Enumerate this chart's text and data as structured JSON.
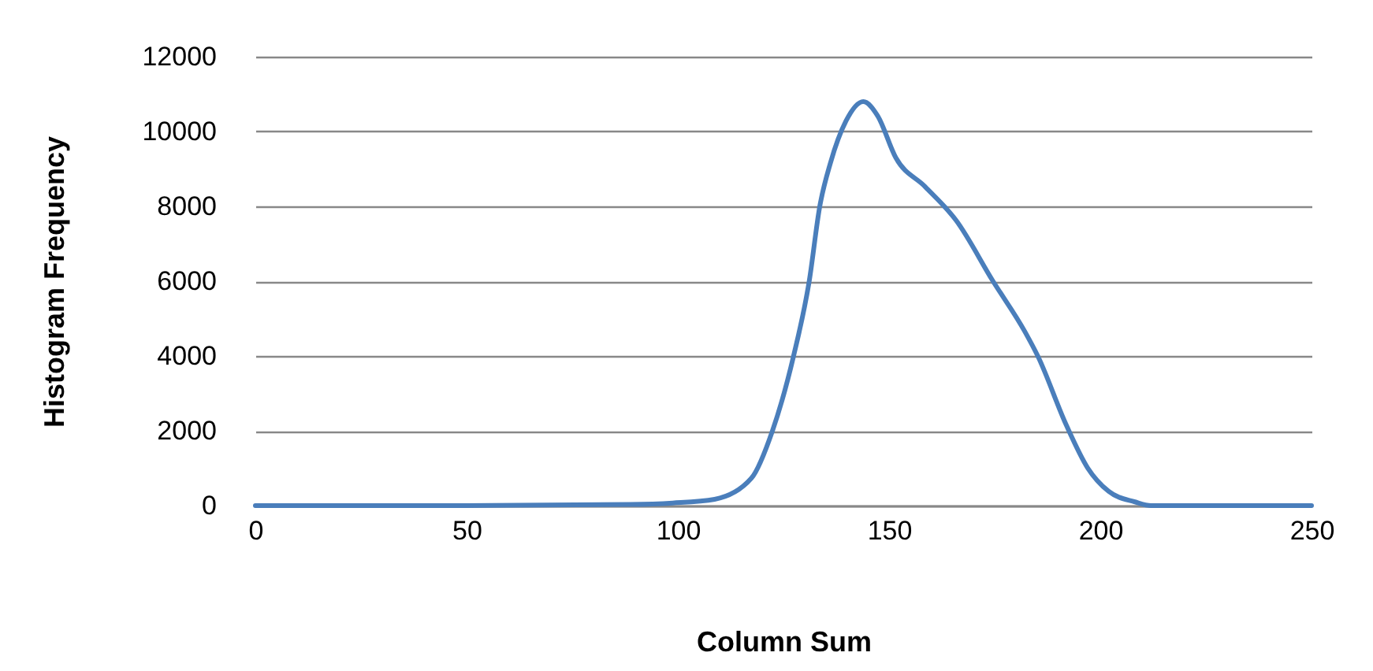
{
  "chart_data": {
    "type": "line",
    "xlabel": "Column Sum",
    "ylabel": "Histogram Frequency",
    "x": [
      0,
      50,
      88.8,
      98.8,
      108.7,
      117.4,
      122.4,
      127.4,
      131.1,
      133.6,
      136.1,
      139.8,
      143.9,
      147.3,
      151.6,
      158.5,
      165.9,
      174.6,
      182.1,
      185.2,
      192,
      197,
      202,
      208.2,
      212,
      230,
      250
    ],
    "values": [
      0,
      0,
      30,
      70,
      170,
      730,
      2000,
      4000,
      6000,
      8000,
      9150,
      10280,
      10800,
      10420,
      9300,
      8530,
      7620,
      6000,
      4660,
      4000,
      2140,
      1010,
      380,
      100,
      0,
      0,
      0
    ],
    "color": "#4a7ebb",
    "xlim": [
      0,
      250
    ],
    "xticks": [
      0,
      50,
      100,
      150,
      200,
      250
    ],
    "ylim": [
      0,
      12000
    ],
    "yticks": [
      0,
      2000,
      4000,
      6000,
      8000,
      10000,
      12000
    ],
    "grid": "y"
  }
}
